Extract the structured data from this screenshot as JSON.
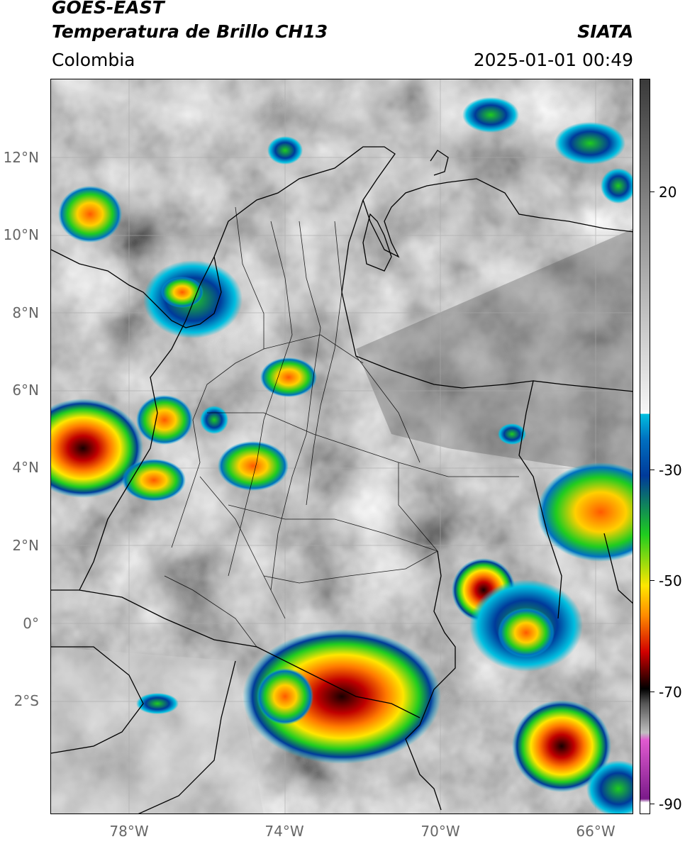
{
  "header": {
    "satellite": "GOES-EAST",
    "product": "Temperatura de Brillo CH13",
    "region": "Colombia",
    "organization": "SIATA",
    "datetime": "2025-01-01 00:49"
  },
  "map": {
    "lat_labels": [
      "12°N",
      "10°N",
      "8°N",
      "6°N",
      "4°N",
      "2°N",
      "0°",
      "2°S"
    ],
    "lon_labels": [
      "78°W",
      "74°W",
      "70°W",
      "66°W"
    ]
  },
  "colorbar": {
    "labels": [
      "20",
      "-30",
      "-50",
      "-70",
      "-90"
    ],
    "colors": {
      "warm_gray": "#3a3a3a",
      "light_gray": "#f4f4f4",
      "cyan": "#00bfe0",
      "blue": "#003a9a",
      "green": "#1fcc1f",
      "yellow": "#ffe600",
      "orange": "#ff8c00",
      "red": "#d10000",
      "black": "#000000",
      "magenta": "#e05ad0",
      "purple": "#7a1a8a"
    }
  }
}
